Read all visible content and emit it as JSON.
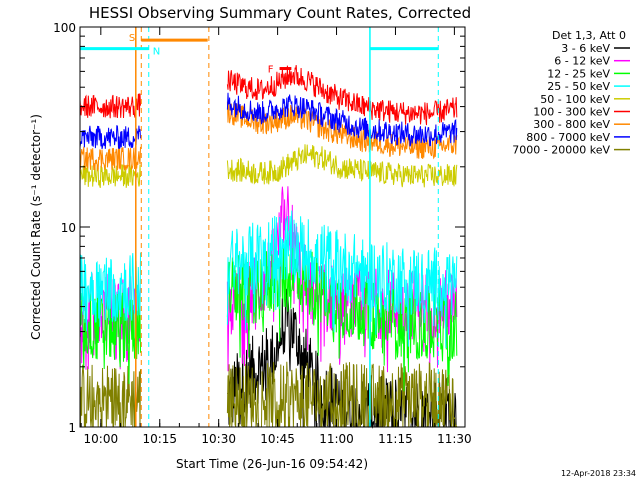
{
  "chart_data": {
    "type": "line",
    "title": "HESSI Observing Summary Count Rates, Corrected",
    "xlabel": "Start Time (26-Jun-16 09:54:42)",
    "ylabel": "Corrected Count Rate (s⁻¹ detector⁻¹)",
    "x_unit": "minutes after 09:54:42",
    "xlim": [
      0,
      98
    ],
    "ylim": [
      1,
      100
    ],
    "y_scale": "log",
    "x_ticks": [
      {
        "value": 5.3,
        "label": "10:00"
      },
      {
        "value": 20.3,
        "label": "10:15"
      },
      {
        "value": 35.3,
        "label": "10:30"
      },
      {
        "value": 50.3,
        "label": "10:45"
      },
      {
        "value": 65.3,
        "label": "11:00"
      },
      {
        "value": 80.3,
        "label": "11:15"
      },
      {
        "value": 95.3,
        "label": "11:30"
      }
    ],
    "y_ticks": [
      {
        "value": 1,
        "label": "1"
      },
      {
        "value": 10,
        "label": "10"
      },
      {
        "value": 100,
        "label": "100"
      }
    ],
    "legend_header": "Det 1,3, Att 0",
    "legend_position": "right",
    "gap": [
      15.5,
      37.5
    ],
    "series": [
      {
        "name": "3 - 6 keV",
        "color": "#000000",
        "x": [
          37.5,
          42,
          46,
          48.5,
          50,
          52,
          54,
          56,
          60,
          66,
          72,
          78,
          84,
          90,
          96
        ],
        "y": [
          1.3,
          1.8,
          2.0,
          2.2,
          2.4,
          3.3,
          3.2,
          2.4,
          1.6,
          1.3,
          1.2,
          1.2,
          1.2,
          1.2,
          1.2
        ]
      },
      {
        "name": "6 - 12 keV",
        "color": "#ff00ff",
        "x": [
          0,
          4,
          8,
          12,
          14,
          37.5,
          42,
          46,
          49,
          51,
          52.5,
          54,
          55.5,
          58,
          62,
          66,
          72,
          80,
          88,
          96
        ],
        "y": [
          3.9,
          3.9,
          3.9,
          3.9,
          3.9,
          4.2,
          4.4,
          5.0,
          6.5,
          9.0,
          14.0,
          9.0,
          6.5,
          5.0,
          4.5,
          4.3,
          4.2,
          4.1,
          4.1,
          4.1
        ]
      },
      {
        "name": "12 - 25 keV",
        "color": "#00ff00",
        "x": [
          0,
          4,
          8,
          12,
          14,
          37.5,
          42,
          46,
          50,
          54,
          58,
          62,
          66,
          70,
          76,
          82,
          88,
          96
        ],
        "y": [
          3.2,
          3.2,
          3.2,
          3.2,
          3.2,
          4.8,
          4.9,
          5.0,
          5.5,
          5.8,
          5.3,
          4.8,
          4.2,
          4.0,
          3.5,
          3.3,
          3.2,
          3.2
        ]
      },
      {
        "name": "25 - 50 keV",
        "color": "#00ffff",
        "x": [
          0,
          4,
          8,
          12,
          14,
          37.5,
          42,
          46,
          50,
          54,
          58,
          62,
          66,
          72,
          78,
          84,
          90,
          96
        ],
        "y": [
          5.0,
          5.0,
          5.0,
          5.0,
          5.0,
          6.5,
          6.8,
          7.2,
          7.8,
          8.0,
          7.5,
          7.0,
          6.5,
          6.0,
          5.6,
          5.4,
          5.3,
          5.3
        ]
      },
      {
        "name": "50 - 100 keV",
        "color": "#cccc00",
        "x": [
          0,
          4,
          8,
          12,
          14,
          37.5,
          42,
          46,
          50,
          54,
          58,
          62,
          66,
          72,
          78,
          84,
          90,
          96
        ],
        "y": [
          18.0,
          18.0,
          18.0,
          18.0,
          18.0,
          19.5,
          19.0,
          18.5,
          19.0,
          21.0,
          23.0,
          22.0,
          20.0,
          19.0,
          18.5,
          18.0,
          18.0,
          18.0
        ]
      },
      {
        "name": "100 - 300 keV",
        "color": "#ff0000",
        "x": [
          0,
          4,
          8,
          12,
          14,
          37.5,
          42,
          46,
          50,
          54,
          58,
          62,
          66,
          72,
          78,
          84,
          90,
          96
        ],
        "y": [
          40.0,
          40.0,
          40.0,
          40.0,
          40.0,
          54.0,
          50.0,
          48.0,
          52.0,
          58.0,
          54.0,
          48.0,
          44.0,
          40.0,
          38.0,
          37.0,
          37.0,
          39.0
        ]
      },
      {
        "name": "300 - 800 keV",
        "color": "#ff8800",
        "x": [
          0,
          4,
          8,
          12,
          14,
          37.5,
          42,
          46,
          50,
          54,
          58,
          62,
          66,
          72,
          78,
          84,
          90,
          96
        ],
        "y": [
          22.0,
          22.0,
          22.0,
          22.0,
          22.0,
          38.0,
          35.0,
          33.0,
          34.0,
          36.0,
          34.0,
          31.0,
          29.0,
          27.0,
          26.0,
          25.0,
          25.0,
          26.0
        ]
      },
      {
        "name": "800 - 7000 keV",
        "color": "#0000ff",
        "x": [
          0,
          4,
          8,
          12,
          14,
          37.5,
          42,
          46,
          50,
          54,
          58,
          62,
          66,
          72,
          78,
          84,
          90,
          96
        ],
        "y": [
          28.0,
          28.0,
          28.0,
          28.0,
          28.0,
          42.0,
          39.0,
          37.0,
          39.0,
          41.0,
          39.0,
          36.0,
          34.0,
          31.0,
          30.0,
          29.0,
          29.0,
          30.0
        ]
      },
      {
        "name": "7000 - 20000 keV",
        "color": "#808000",
        "x": [
          0,
          4,
          8,
          12,
          14,
          37.5,
          42,
          46,
          50,
          54,
          58,
          62,
          66,
          72,
          78,
          84,
          90,
          96
        ],
        "y": [
          1.4,
          1.4,
          1.4,
          1.4,
          1.4,
          1.4,
          1.4,
          1.4,
          1.4,
          1.4,
          1.4,
          1.4,
          1.4,
          1.4,
          1.4,
          1.4,
          1.4,
          1.4
        ]
      }
    ],
    "markers": [
      {
        "kind": "saa",
        "label": "S",
        "color": "#ff8800",
        "x_start": 15.6,
        "x_end": 32.5,
        "level": 86
      },
      {
        "kind": "night",
        "label": "N",
        "color": "#00ffff",
        "x_start": 0,
        "x_end": 17.5,
        "level": 78
      },
      {
        "kind": "night",
        "label": "",
        "color": "#00ffff",
        "x_start": 73.8,
        "x_end": 91.2,
        "level": 78
      },
      {
        "kind": "flare",
        "label": "F",
        "color": "#ff0000",
        "x_start": 50.8,
        "x_end": 53.8,
        "level": 62
      }
    ],
    "vlines": [
      {
        "x": 14.2,
        "color": "#ff8800",
        "style": "solid"
      },
      {
        "x": 15.6,
        "color": "#ff8800",
        "style": "dashed"
      },
      {
        "x": 17.5,
        "color": "#00ffff",
        "style": "dashed"
      },
      {
        "x": 32.8,
        "color": "#ff8800",
        "style": "dashed"
      },
      {
        "x": 73.8,
        "color": "#00ffff",
        "style": "solid"
      },
      {
        "x": 91.2,
        "color": "#00ffff",
        "style": "dashed"
      }
    ],
    "footer_date": "12-Apr-2018 23:34"
  }
}
